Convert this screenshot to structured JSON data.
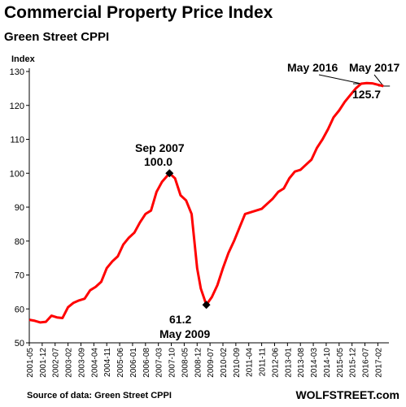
{
  "page": {
    "title": "Commercial Property Price Index",
    "subtitle": "Green Street CPPI",
    "source": "Source of data: Green Street CPPI",
    "brand": "WOLFSTREET.com"
  },
  "chart_data": {
    "type": "line",
    "ylabel": "Index",
    "ylim": [
      50,
      130
    ],
    "yticks": [
      50,
      60,
      70,
      80,
      90,
      100,
      110,
      120,
      130
    ],
    "grid": false,
    "line_color": "#ff0000",
    "x_tick_labels": [
      "2001-05",
      "2001-12",
      "2002-07",
      "2003-02",
      "2003-09",
      "2004-04",
      "2004-11",
      "2005-06",
      "2006-01",
      "2006-08",
      "2007-03",
      "2007-10",
      "2008-05",
      "2008-12",
      "2009-07",
      "2010-02",
      "2010-09",
      "2011-04",
      "2011-11",
      "2012-06",
      "2013-01",
      "2013-08",
      "2014-03",
      "2014-10",
      "2015-05",
      "2015-12",
      "2016-07",
      "2017-02"
    ],
    "series": [
      {
        "x": [
          "2001-05",
          "2001-08",
          "2001-11",
          "2002-02",
          "2002-05",
          "2002-08",
          "2002-11",
          "2003-02",
          "2003-05",
          "2003-08",
          "2003-11",
          "2004-02",
          "2004-05",
          "2004-08",
          "2004-11",
          "2005-02",
          "2005-05",
          "2005-08",
          "2005-11",
          "2006-02",
          "2006-05",
          "2006-08",
          "2006-11",
          "2007-02",
          "2007-05",
          "2007-09",
          "2007-12",
          "2008-03",
          "2008-06",
          "2008-09",
          "2008-12",
          "2009-02",
          "2009-05",
          "2009-08",
          "2009-11",
          "2010-02",
          "2010-05",
          "2010-08",
          "2010-11",
          "2011-02",
          "2011-05",
          "2011-08",
          "2011-11",
          "2012-02",
          "2012-05",
          "2012-08",
          "2012-11",
          "2013-02",
          "2013-05",
          "2013-08",
          "2013-11",
          "2014-02",
          "2014-05",
          "2014-08",
          "2014-11",
          "2015-02",
          "2015-05",
          "2015-08",
          "2015-11",
          "2016-02",
          "2016-05",
          "2016-08",
          "2016-11",
          "2017-02",
          "2017-05"
        ],
        "y": [
          56.8,
          56.5,
          56.0,
          56.2,
          58.0,
          57.5,
          57.3,
          60.5,
          61.8,
          62.5,
          63.0,
          65.5,
          66.5,
          68.0,
          72.0,
          74.0,
          75.5,
          79.0,
          81.0,
          82.5,
          85.5,
          88.0,
          89.0,
          94.5,
          97.5,
          100.0,
          98.5,
          93.5,
          92.0,
          88.0,
          72.0,
          66.0,
          61.2,
          63.5,
          67.0,
          72.0,
          76.5,
          80.0,
          84.0,
          88.0,
          88.5,
          89.0,
          89.5,
          91.0,
          92.5,
          94.5,
          95.5,
          98.5,
          100.5,
          101.0,
          102.5,
          104.0,
          107.5,
          110.0,
          113.0,
          116.5,
          118.5,
          121.0,
          123.0,
          125.0,
          126.4,
          126.6,
          126.5,
          126.1,
          125.7
        ]
      }
    ],
    "annotations": [
      {
        "date": "Sep 2007",
        "value": "100.0"
      },
      {
        "date": "May 2009",
        "value": "61.2"
      },
      {
        "date": "May 2016",
        "value": ""
      },
      {
        "date": "May 2017",
        "value": "125.7"
      }
    ]
  }
}
